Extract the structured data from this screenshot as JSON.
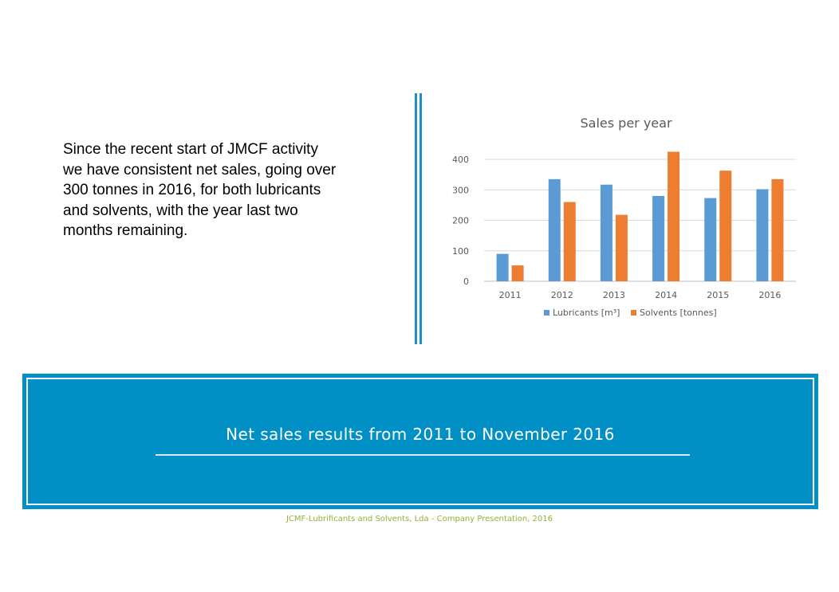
{
  "slide": {
    "intro_text": "Since the recent start of JMCF activity we have consistent net sales, going over 300 tonnes in 2016, for both lubricants and solvents, with the year last two months remaining.",
    "banner_title": "Net sales results from 2011 to November 2016",
    "footer": "JCMF-Lubrificants and Solvents, Lda - Company Presentation, 2016"
  },
  "colors": {
    "divider": "#1f8fc8",
    "banner_bg": "#0190c5",
    "footer_text": "#8db33a"
  },
  "chart_data": {
    "type": "bar",
    "title": "Sales per year",
    "xlabel": "",
    "ylabel": "",
    "categories": [
      "2011",
      "2012",
      "2013",
      "2014",
      "2015",
      "2016"
    ],
    "series": [
      {
        "name": "Lubricants [m³]",
        "color": "#5b9bd5",
        "values": [
          90,
          335,
          317,
          280,
          273,
          302
        ]
      },
      {
        "name": "Solvents [tonnes]",
        "color": "#ed7d31",
        "values": [
          52,
          260,
          218,
          425,
          363,
          335
        ]
      }
    ],
    "ylim": [
      0,
      400
    ],
    "yticks": [
      "0",
      "100",
      "200",
      "300",
      "400"
    ],
    "grid": true,
    "legend": "bottom"
  }
}
